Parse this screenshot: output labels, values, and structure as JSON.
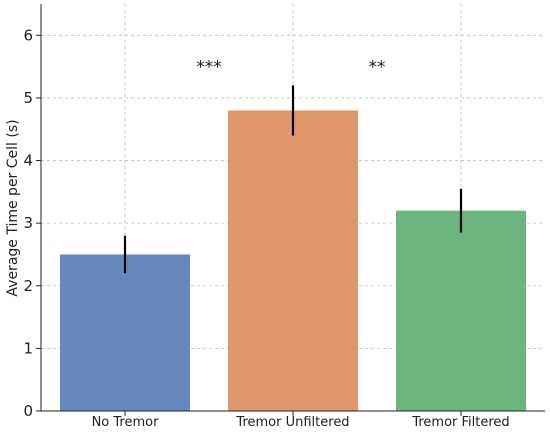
{
  "chart_data": {
    "type": "bar",
    "title": "",
    "xlabel": "",
    "ylabel": "Average Time per Cell (s)",
    "categories": [
      "No Tremor",
      "Tremor Unfiltered",
      "Tremor Filtered"
    ],
    "values": [
      2.5,
      4.8,
      3.2
    ],
    "error": [
      0.3,
      0.4,
      0.35
    ],
    "colors": [
      "#6788bd",
      "#e1976c",
      "#6db57f"
    ],
    "ylim": [
      0,
      6.5
    ],
    "yticks": [
      0,
      1,
      2,
      3,
      4,
      5,
      6
    ],
    "grid": true,
    "legend": "none",
    "annotations": [
      {
        "text": "***",
        "between": [
          0,
          1
        ],
        "y": 5.5
      },
      {
        "text": "**",
        "between": [
          1,
          2
        ],
        "y": 5.5
      }
    ]
  }
}
